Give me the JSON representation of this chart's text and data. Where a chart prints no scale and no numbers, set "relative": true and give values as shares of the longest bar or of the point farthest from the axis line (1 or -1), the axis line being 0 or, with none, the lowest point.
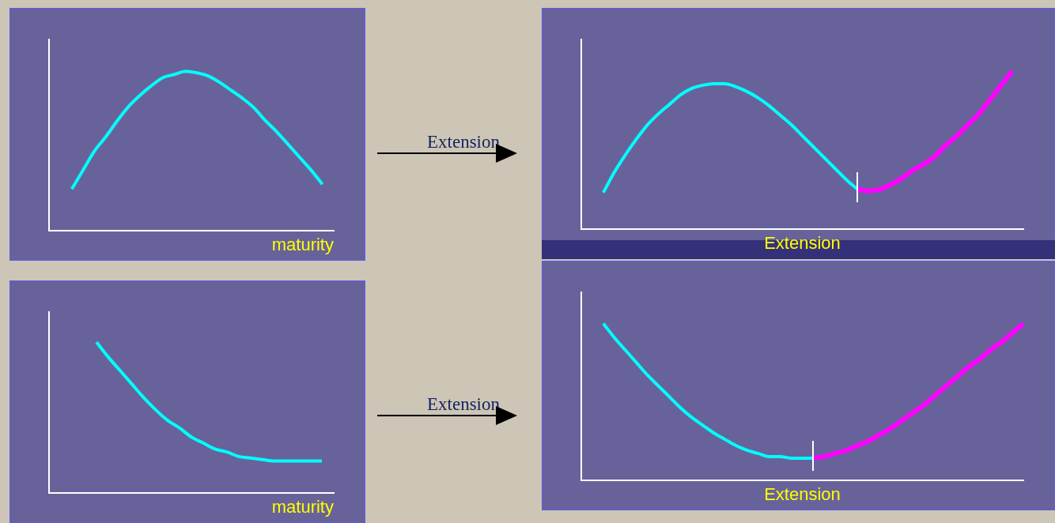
{
  "chart_data": [
    {
      "type": "line",
      "relative": true,
      "xlabel": "maturity",
      "legend": false,
      "grid": false,
      "marker": "none",
      "line_style": "solid",
      "annotations": [
        "Extension"
      ],
      "categories": [
        null,
        null,
        null,
        null,
        null,
        null,
        null,
        null,
        null,
        null,
        null,
        null,
        null,
        null,
        null,
        null,
        null,
        null,
        null,
        null,
        null,
        null,
        null,
        null,
        null,
        null
      ],
      "series": [
        {
          "color": "#00ffff",
          "values": [
            null,
            null,
            0.26,
            0.38,
            0.5,
            0.59,
            0.69,
            0.78,
            0.85,
            0.91,
            0.96,
            0.98,
            1,
            0.99,
            0.97,
            0.93,
            0.88,
            0.83,
            0.77,
            0.69,
            0.62,
            0.54,
            0.46,
            0.38,
            0.29,
            null
          ]
        }
      ]
    },
    {
      "type": "line",
      "relative": true,
      "xlabel": "Extension",
      "legend": false,
      "grid": false,
      "marker": "none",
      "line_style": "solid",
      "categories": [
        null,
        null,
        null,
        null,
        null,
        null,
        null,
        null,
        null,
        null,
        null,
        null,
        null,
        null,
        null,
        null,
        null,
        null,
        null,
        null,
        null,
        null,
        null,
        null,
        null,
        null,
        null,
        null,
        null,
        null,
        null,
        null,
        null,
        null,
        null,
        null,
        null,
        null,
        null,
        null,
        null
      ],
      "series": [
        {
          "color": "#00ffff",
          "values": [
            null,
            null,
            0.23,
            0.36,
            0.47,
            0.57,
            0.66,
            0.73,
            0.79,
            0.85,
            0.89,
            0.91,
            0.92,
            0.92,
            0.9,
            0.87,
            0.83,
            0.78,
            0.72,
            0.66,
            0.59,
            0.52,
            0.45,
            0.38,
            0.31,
            0.25,
            null,
            null,
            null,
            null,
            null,
            null,
            null,
            null,
            null,
            null,
            null,
            null,
            null,
            null,
            null
          ]
        },
        {
          "color": "#ff00ff",
          "values": [
            null,
            null,
            null,
            null,
            null,
            null,
            null,
            null,
            null,
            null,
            null,
            null,
            null,
            null,
            null,
            null,
            null,
            null,
            null,
            null,
            null,
            null,
            null,
            null,
            null,
            0.25,
            0.24,
            0.25,
            0.28,
            0.32,
            0.37,
            0.41,
            0.46,
            0.53,
            0.59,
            0.66,
            0.73,
            0.82,
            0.91,
            1,
            null
          ]
        }
      ]
    },
    {
      "type": "line",
      "relative": true,
      "xlabel": "maturity",
      "legend": false,
      "grid": false,
      "marker": "none",
      "line_style": "solid",
      "annotations": [
        "Extension"
      ],
      "categories": [
        null,
        null,
        null,
        null,
        null,
        null,
        null,
        null,
        null,
        null,
        null,
        null,
        null,
        null,
        null,
        null,
        null,
        null,
        null,
        null,
        null,
        null,
        null,
        null,
        null
      ],
      "series": [
        {
          "color": "#00ffff",
          "values": [
            null,
            null,
            null,
            null,
            1,
            0.9,
            0.81,
            0.72,
            0.63,
            0.55,
            0.48,
            0.43,
            0.37,
            0.33,
            0.29,
            0.27,
            0.24,
            0.23,
            0.22,
            0.21,
            0.21,
            0.21,
            0.21,
            0.21,
            null
          ]
        }
      ]
    },
    {
      "type": "line",
      "relative": true,
      "xlabel": "Extension",
      "legend": false,
      "grid": false,
      "marker": "none",
      "line_style": "solid",
      "categories": [
        null,
        null,
        null,
        null,
        null,
        null,
        null,
        null,
        null,
        null,
        null,
        null,
        null,
        null,
        null,
        null,
        null,
        null,
        null,
        null,
        null,
        null,
        null,
        null,
        null,
        null,
        null,
        null,
        null,
        null,
        null,
        null,
        null,
        null,
        null,
        null,
        null,
        null,
        null,
        null,
        null
      ],
      "series": [
        {
          "color": "#00ffff",
          "values": [
            null,
            null,
            1,
            0.91,
            0.83,
            0.75,
            0.67,
            0.6,
            0.53,
            0.46,
            0.4,
            0.35,
            0.3,
            0.26,
            0.22,
            0.19,
            0.17,
            0.15,
            0.15,
            0.14,
            0.14,
            0.14,
            null,
            null,
            null,
            null,
            null,
            null,
            null,
            null,
            null,
            null,
            null,
            null,
            null,
            null,
            null,
            null,
            null,
            null,
            null
          ]
        },
        {
          "color": "#ff00ff",
          "values": [
            null,
            null,
            null,
            null,
            null,
            null,
            null,
            null,
            null,
            null,
            null,
            null,
            null,
            null,
            null,
            null,
            null,
            null,
            null,
            null,
            null,
            0.14,
            0.15,
            0.17,
            0.19,
            0.22,
            0.25,
            0.29,
            0.33,
            0.38,
            0.43,
            0.48,
            0.54,
            0.6,
            0.66,
            0.72,
            0.77,
            0.83,
            0.88,
            0.94,
            1
          ]
        }
      ]
    }
  ]
}
